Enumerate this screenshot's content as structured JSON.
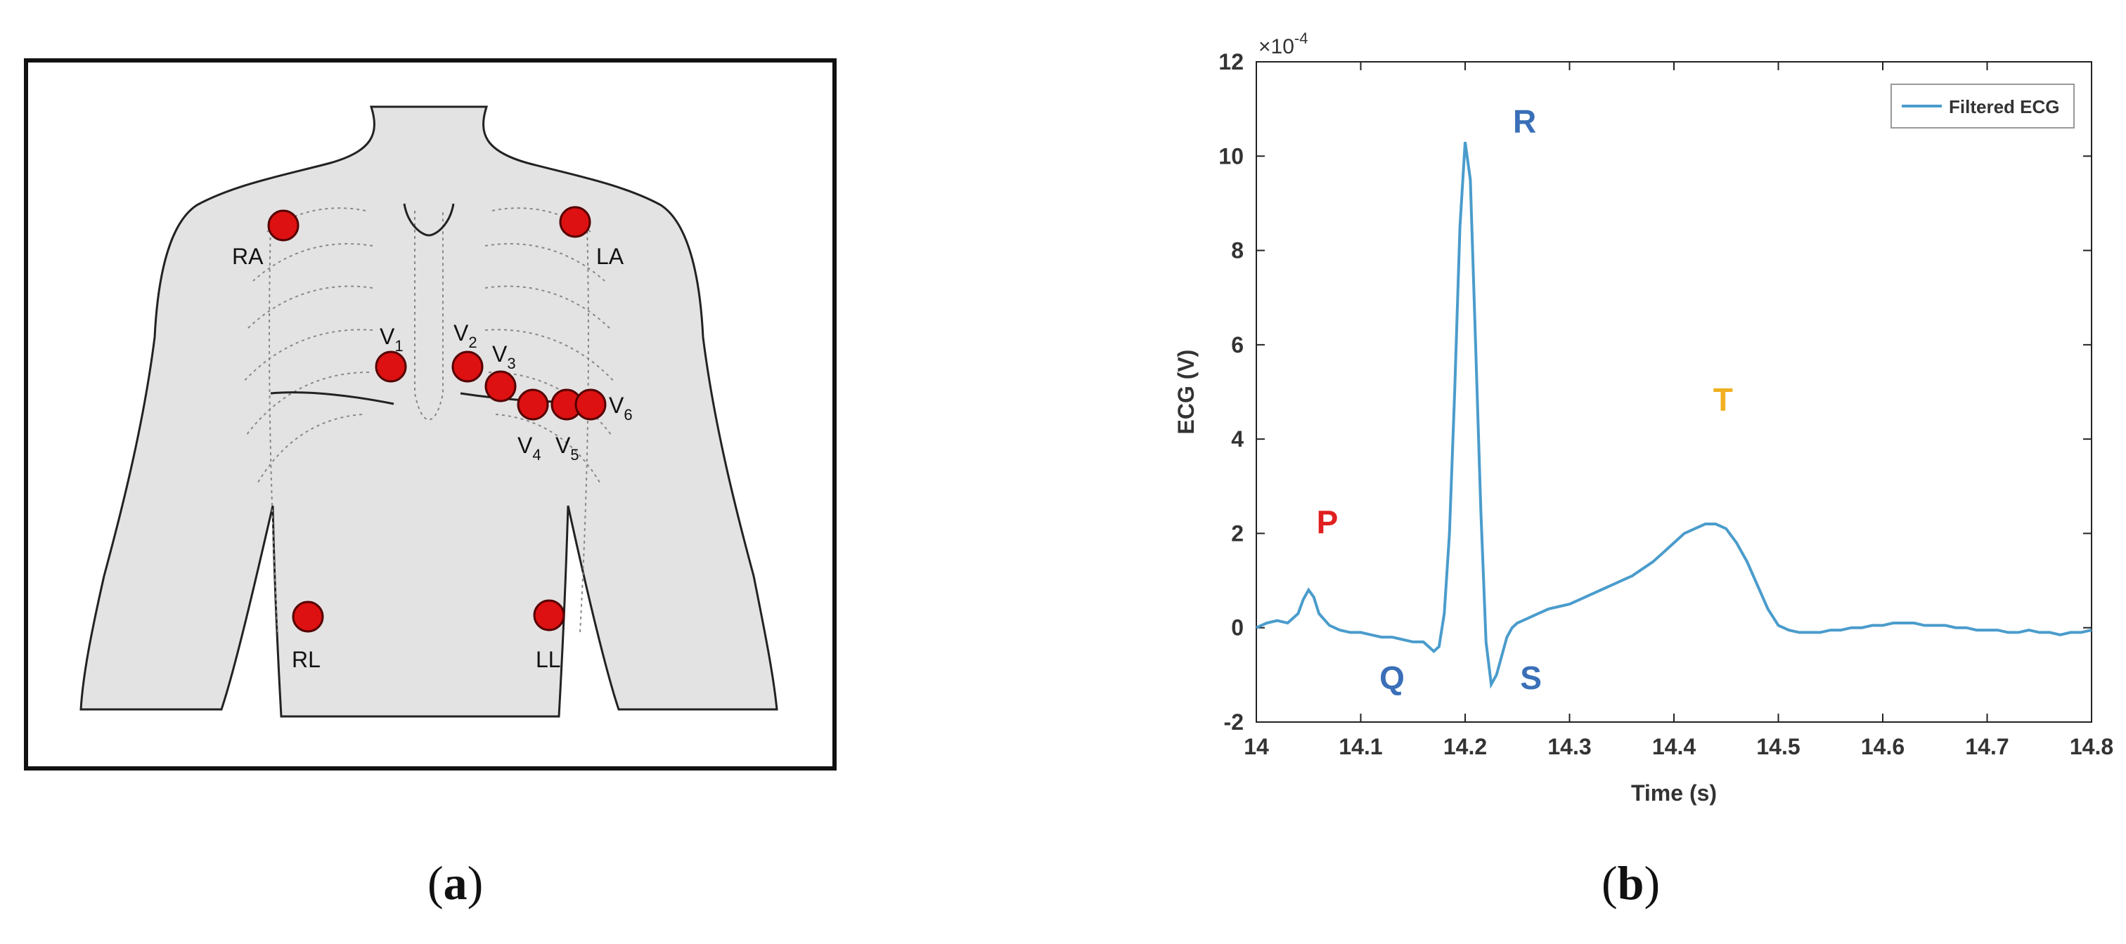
{
  "figure": {
    "caption_a": "a",
    "caption_b": "b"
  },
  "electrodes": [
    {
      "label": "RA",
      "sub": ""
    },
    {
      "label": "LA",
      "sub": ""
    },
    {
      "label": "V",
      "sub": "1"
    },
    {
      "label": "V",
      "sub": "2"
    },
    {
      "label": "V",
      "sub": "3"
    },
    {
      "label": "V",
      "sub": "4"
    },
    {
      "label": "V",
      "sub": "5"
    },
    {
      "label": "V",
      "sub": "6"
    },
    {
      "label": "RL",
      "sub": ""
    },
    {
      "label": "LL",
      "sub": ""
    }
  ],
  "colors": {
    "electrode": "#dd1111",
    "torso": "#e3e3e3",
    "ecg_line": "#4a9ccc",
    "p_label": "#e02020",
    "qrs_label": "#3a6fb8",
    "t_label": "#f0b020"
  },
  "chart_data": {
    "type": "line",
    "title": "",
    "xlabel": "Time (s)",
    "ylabel": "ECG (V)",
    "y_multiplier": "×10",
    "y_exponent": "-4",
    "xlim": [
      14,
      14.8
    ],
    "ylim": [
      -2,
      12
    ],
    "xticks": [
      "14",
      "14.1",
      "14.2",
      "14.3",
      "14.4",
      "14.5",
      "14.6",
      "14.7",
      "14.8"
    ],
    "yticks": [
      "-2",
      "0",
      "2",
      "4",
      "6",
      "8",
      "10",
      "12"
    ],
    "grid": false,
    "legend": {
      "position": "top-right",
      "entries": [
        "Filtered ECG"
      ]
    },
    "series": [
      {
        "name": "Filtered ECG",
        "x": [
          14.0,
          14.01,
          14.02,
          14.03,
          14.04,
          14.045,
          14.05,
          14.055,
          14.06,
          14.07,
          14.08,
          14.09,
          14.1,
          14.11,
          14.12,
          14.13,
          14.14,
          14.15,
          14.16,
          14.17,
          14.175,
          14.18,
          14.185,
          14.19,
          14.195,
          14.2,
          14.205,
          14.21,
          14.215,
          14.22,
          14.225,
          14.23,
          14.235,
          14.24,
          14.245,
          14.25,
          14.26,
          14.27,
          14.28,
          14.29,
          14.3,
          14.31,
          14.32,
          14.33,
          14.34,
          14.35,
          14.36,
          14.37,
          14.38,
          14.39,
          14.4,
          14.41,
          14.42,
          14.43,
          14.44,
          14.45,
          14.46,
          14.47,
          14.48,
          14.49,
          14.5,
          14.51,
          14.52,
          14.53,
          14.54,
          14.55,
          14.56,
          14.57,
          14.58,
          14.59,
          14.6,
          14.61,
          14.62,
          14.63,
          14.64,
          14.65,
          14.66,
          14.67,
          14.68,
          14.69,
          14.7,
          14.71,
          14.72,
          14.73,
          14.74,
          14.75,
          14.76,
          14.77,
          14.78,
          14.79,
          14.8
        ],
        "values": [
          0.0,
          0.1,
          0.15,
          0.1,
          0.3,
          0.6,
          0.8,
          0.65,
          0.3,
          0.05,
          -0.05,
          -0.1,
          -0.1,
          -0.15,
          -0.2,
          -0.2,
          -0.25,
          -0.3,
          -0.3,
          -0.5,
          -0.4,
          0.3,
          2.0,
          5.0,
          8.5,
          10.3,
          9.5,
          6.0,
          2.5,
          -0.3,
          -1.2,
          -1.0,
          -0.6,
          -0.2,
          0.0,
          0.1,
          0.2,
          0.3,
          0.4,
          0.45,
          0.5,
          0.6,
          0.7,
          0.8,
          0.9,
          1.0,
          1.1,
          1.25,
          1.4,
          1.6,
          1.8,
          2.0,
          2.1,
          2.2,
          2.2,
          2.1,
          1.8,
          1.4,
          0.9,
          0.4,
          0.05,
          -0.05,
          -0.1,
          -0.1,
          -0.1,
          -0.05,
          -0.05,
          0.0,
          0.0,
          0.05,
          0.05,
          0.1,
          0.1,
          0.1,
          0.05,
          0.05,
          0.05,
          0.0,
          0.0,
          -0.05,
          -0.05,
          -0.05,
          -0.1,
          -0.1,
          -0.05,
          -0.1,
          -0.1,
          -0.15,
          -0.1,
          -0.1,
          -0.05
        ]
      }
    ],
    "annotations": [
      {
        "text": "P",
        "x": 14.068,
        "y": 2.0,
        "color_key": "p_label"
      },
      {
        "text": "Q",
        "x": 14.13,
        "y": -1.3,
        "color_key": "qrs_label"
      },
      {
        "text": "R",
        "x": 14.257,
        "y": 10.5,
        "color_key": "qrs_label"
      },
      {
        "text": "S",
        "x": 14.263,
        "y": -1.3,
        "color_key": "qrs_label"
      },
      {
        "text": "T",
        "x": 14.447,
        "y": 4.6,
        "color_key": "t_label"
      }
    ]
  }
}
